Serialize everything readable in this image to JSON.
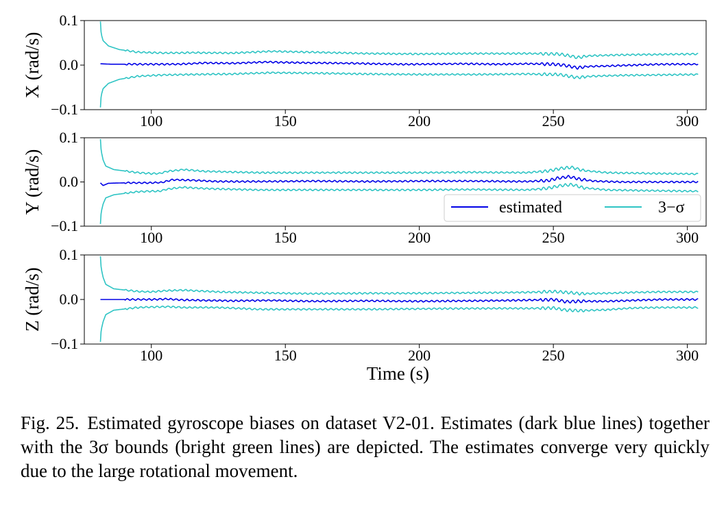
{
  "chart_data": [
    {
      "type": "line",
      "ylabel": "X (rad/s)",
      "xlim": [
        75,
        307
      ],
      "ylim": [
        -0.1,
        0.1
      ],
      "xticks": [
        "100",
        "150",
        "200",
        "250",
        "300"
      ],
      "yticks": [
        "−0.1",
        "0.0",
        "0.1"
      ],
      "legend": null,
      "series": [
        {
          "name": "estimated",
          "color": "#0000e6",
          "points": [
            [
              81,
              0.003
            ],
            [
              85,
              0.002
            ],
            [
              100,
              0.002
            ],
            [
              110,
              0.002
            ],
            [
              120,
              0.005
            ],
            [
              130,
              0.004
            ],
            [
              143,
              0.007
            ],
            [
              150,
              0.006
            ],
            [
              160,
              0.005
            ],
            [
              175,
              0.004
            ],
            [
              190,
              0.002
            ],
            [
              200,
              0.002
            ],
            [
              215,
              0.003
            ],
            [
              230,
              0.002
            ],
            [
              240,
              0.003
            ],
            [
              250,
              0.002
            ],
            [
              254,
              0.0
            ],
            [
              259,
              -0.006
            ],
            [
              263,
              -0.003
            ],
            [
              270,
              -0.002
            ],
            [
              280,
              0.0
            ],
            [
              290,
              0.002
            ],
            [
              304,
              0.002
            ]
          ]
        },
        {
          "name": "3−σ",
          "color": "#2ec4c4",
          "points": [
            [
              81,
              0.098
            ],
            [
              81.3,
              0.07
            ],
            [
              82,
              0.055
            ],
            [
              84,
              0.043
            ],
            [
              88,
              0.035
            ],
            [
              95,
              0.029
            ],
            [
              105,
              0.027
            ],
            [
              115,
              0.028
            ],
            [
              130,
              0.027
            ],
            [
              145,
              0.031
            ],
            [
              160,
              0.029
            ],
            [
              180,
              0.026
            ],
            [
              200,
              0.025
            ],
            [
              220,
              0.026
            ],
            [
              240,
              0.026
            ],
            [
              252,
              0.025
            ],
            [
              256,
              0.021
            ],
            [
              259,
              0.017
            ],
            [
              264,
              0.021
            ],
            [
              275,
              0.023
            ],
            [
              290,
              0.024
            ],
            [
              304,
              0.025
            ]
          ]
        },
        {
          "name": "3−σ",
          "color": "#2ec4c4",
          "points": [
            [
              81,
              -0.095
            ],
            [
              81.3,
              -0.068
            ],
            [
              82,
              -0.053
            ],
            [
              84,
              -0.041
            ],
            [
              88,
              -0.032
            ],
            [
              95,
              -0.025
            ],
            [
              105,
              -0.022
            ],
            [
              115,
              -0.021
            ],
            [
              130,
              -0.02
            ],
            [
              145,
              -0.017
            ],
            [
              160,
              -0.018
            ],
            [
              180,
              -0.02
            ],
            [
              200,
              -0.021
            ],
            [
              220,
              -0.021
            ],
            [
              240,
              -0.02
            ],
            [
              252,
              -0.021
            ],
            [
              256,
              -0.025
            ],
            [
              259,
              -0.028
            ],
            [
              264,
              -0.025
            ],
            [
              275,
              -0.023
            ],
            [
              290,
              -0.022
            ],
            [
              304,
              -0.021
            ]
          ]
        }
      ]
    },
    {
      "type": "line",
      "ylabel": "Y (rad/s)",
      "xlim": [
        75,
        307
      ],
      "ylim": [
        -0.1,
        0.1
      ],
      "xticks": [
        "100",
        "150",
        "200",
        "250",
        "300"
      ],
      "yticks": [
        "−0.1",
        "0.0",
        "0.1"
      ],
      "legend": "lower-right",
      "series": [
        {
          "name": "estimated",
          "color": "#0000e6",
          "points": [
            [
              81,
              -0.002
            ],
            [
              82,
              -0.008
            ],
            [
              84,
              -0.003
            ],
            [
              90,
              -0.002
            ],
            [
              100,
              -0.002
            ],
            [
              104,
              -0.001
            ],
            [
              108,
              0.005
            ],
            [
              115,
              0.004
            ],
            [
              125,
              0.001
            ],
            [
              140,
              0.001
            ],
            [
              160,
              0.002
            ],
            [
              180,
              0.001
            ],
            [
              200,
              0.002
            ],
            [
              220,
              0.002
            ],
            [
              240,
              0.001
            ],
            [
              248,
              0.003
            ],
            [
              252,
              0.009
            ],
            [
              256,
              0.012
            ],
            [
              260,
              0.006
            ],
            [
              265,
              0.002
            ],
            [
              275,
              0.0
            ],
            [
              290,
              0.0
            ],
            [
              304,
              0.0
            ]
          ]
        },
        {
          "name": "3−σ",
          "color": "#2ec4c4",
          "points": [
            [
              81,
              0.097
            ],
            [
              81.3,
              0.07
            ],
            [
              82,
              0.05
            ],
            [
              83,
              0.036
            ],
            [
              86,
              0.028
            ],
            [
              95,
              0.021
            ],
            [
              100,
              0.019
            ],
            [
              103,
              0.019
            ],
            [
              106,
              0.024
            ],
            [
              112,
              0.028
            ],
            [
              120,
              0.024
            ],
            [
              140,
              0.021
            ],
            [
              160,
              0.021
            ],
            [
              180,
              0.021
            ],
            [
              200,
              0.021
            ],
            [
              220,
              0.022
            ],
            [
              240,
              0.021
            ],
            [
              248,
              0.025
            ],
            [
              253,
              0.031
            ],
            [
              257,
              0.033
            ],
            [
              261,
              0.026
            ],
            [
              270,
              0.021
            ],
            [
              290,
              0.019
            ],
            [
              304,
              0.018
            ]
          ]
        },
        {
          "name": "3−σ",
          "color": "#2ec4c4",
          "points": [
            [
              81,
              -0.095
            ],
            [
              81.3,
              -0.068
            ],
            [
              82,
              -0.05
            ],
            [
              83,
              -0.036
            ],
            [
              86,
              -0.029
            ],
            [
              95,
              -0.022
            ],
            [
              100,
              -0.021
            ],
            [
              103,
              -0.021
            ],
            [
              106,
              -0.016
            ],
            [
              112,
              -0.012
            ],
            [
              120,
              -0.015
            ],
            [
              140,
              -0.018
            ],
            [
              160,
              -0.018
            ],
            [
              180,
              -0.018
            ],
            [
              200,
              -0.018
            ],
            [
              220,
              -0.017
            ],
            [
              240,
              -0.018
            ],
            [
              248,
              -0.014
            ],
            [
              253,
              -0.008
            ],
            [
              257,
              -0.006
            ],
            [
              261,
              -0.013
            ],
            [
              270,
              -0.018
            ],
            [
              290,
              -0.02
            ],
            [
              304,
              -0.021
            ]
          ]
        }
      ]
    },
    {
      "type": "line",
      "ylabel": "Z (rad/s)",
      "xlabel": "Time (s)",
      "xlim": [
        75,
        307
      ],
      "ylim": [
        -0.1,
        0.1
      ],
      "xticks": [
        "100",
        "150",
        "200",
        "250",
        "300"
      ],
      "yticks": [
        "−0.1",
        "0.0",
        "0.1"
      ],
      "legend": null,
      "series": [
        {
          "name": "estimated",
          "color": "#0000e6",
          "points": [
            [
              81,
              0.0
            ],
            [
              90,
              0.0
            ],
            [
              100,
              0.0
            ],
            [
              106,
              0.001
            ],
            [
              112,
              -0.001
            ],
            [
              120,
              -0.002
            ],
            [
              130,
              -0.003
            ],
            [
              145,
              -0.002
            ],
            [
              160,
              -0.004
            ],
            [
              180,
              -0.003
            ],
            [
              200,
              -0.004
            ],
            [
              220,
              -0.003
            ],
            [
              235,
              -0.002
            ],
            [
              245,
              -0.001
            ],
            [
              250,
              0.0
            ],
            [
              255,
              -0.005
            ],
            [
              260,
              -0.004
            ],
            [
              270,
              -0.004
            ],
            [
              280,
              -0.002
            ],
            [
              290,
              0.0
            ],
            [
              304,
              0.0
            ]
          ]
        },
        {
          "name": "3−σ",
          "color": "#2ec4c4",
          "points": [
            [
              81,
              0.097
            ],
            [
              81.3,
              0.07
            ],
            [
              82,
              0.05
            ],
            [
              83,
              0.034
            ],
            [
              86,
              0.024
            ],
            [
              95,
              0.018
            ],
            [
              100,
              0.017
            ],
            [
              106,
              0.02
            ],
            [
              112,
              0.021
            ],
            [
              125,
              0.017
            ],
            [
              140,
              0.015
            ],
            [
              160,
              0.013
            ],
            [
              180,
              0.014
            ],
            [
              200,
              0.014
            ],
            [
              220,
              0.015
            ],
            [
              240,
              0.016
            ],
            [
              250,
              0.018
            ],
            [
              255,
              0.016
            ],
            [
              260,
              0.013
            ],
            [
              270,
              0.014
            ],
            [
              280,
              0.016
            ],
            [
              290,
              0.017
            ],
            [
              304,
              0.017
            ]
          ]
        },
        {
          "name": "3−σ",
          "color": "#2ec4c4",
          "points": [
            [
              81,
              -0.095
            ],
            [
              81.3,
              -0.068
            ],
            [
              82,
              -0.05
            ],
            [
              83,
              -0.034
            ],
            [
              86,
              -0.024
            ],
            [
              95,
              -0.018
            ],
            [
              100,
              -0.017
            ],
            [
              106,
              -0.016
            ],
            [
              112,
              -0.018
            ],
            [
              125,
              -0.018
            ],
            [
              140,
              -0.022
            ],
            [
              160,
              -0.022
            ],
            [
              180,
              -0.022
            ],
            [
              200,
              -0.021
            ],
            [
              220,
              -0.02
            ],
            [
              240,
              -0.02
            ],
            [
              250,
              -0.019
            ],
            [
              255,
              -0.024
            ],
            [
              260,
              -0.025
            ],
            [
              270,
              -0.023
            ],
            [
              280,
              -0.019
            ],
            [
              290,
              -0.018
            ],
            [
              304,
              -0.018
            ]
          ]
        }
      ]
    }
  ],
  "caption": {
    "label": "Fig. 25.",
    "text": "Estimated gyroscope biases on dataset V2-01. Estimates (dark blue lines) together with the 3σ bounds (bright green lines) are depicted. The estimates converge very quickly due to the large rotational movement."
  }
}
